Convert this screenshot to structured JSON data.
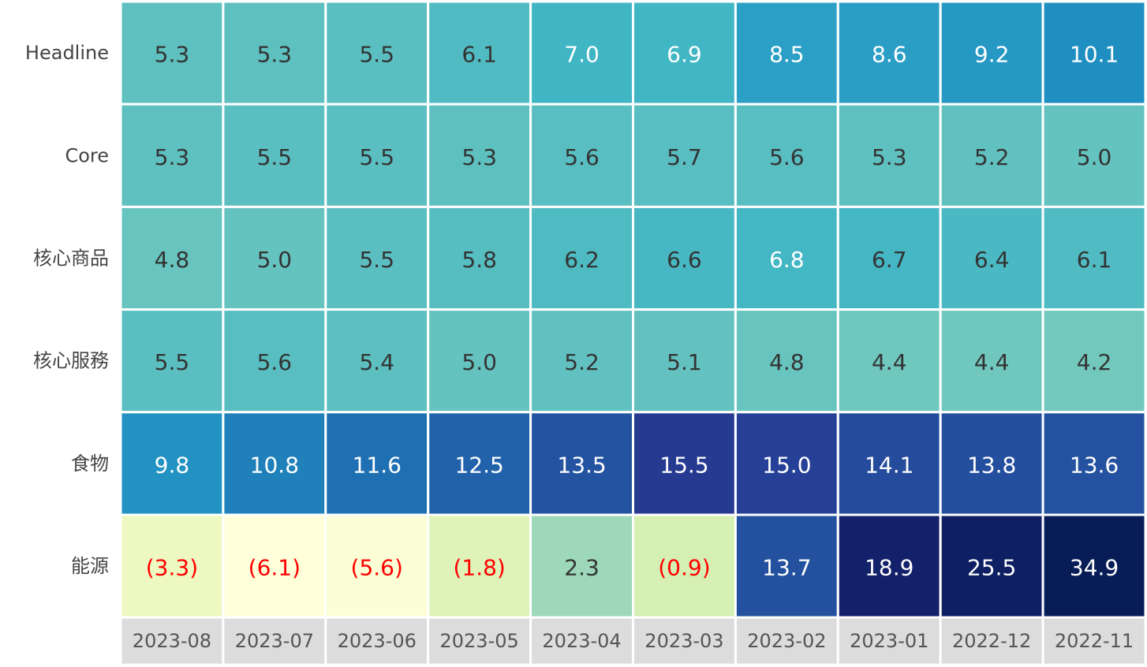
{
  "chart_data": {
    "type": "heatmap",
    "rows": [
      "Headline",
      "Core",
      "核心商品",
      "核心服務",
      "食物",
      "能源"
    ],
    "columns": [
      "2023-08",
      "2023-07",
      "2023-06",
      "2023-05",
      "2023-04",
      "2023-03",
      "2023-02",
      "2023-01",
      "2022-12",
      "2022-11"
    ],
    "values": [
      [
        5.3,
        5.3,
        5.5,
        6.1,
        7.0,
        6.9,
        8.5,
        8.6,
        9.2,
        10.1
      ],
      [
        5.3,
        5.5,
        5.5,
        5.3,
        5.6,
        5.7,
        5.6,
        5.3,
        5.2,
        5.0
      ],
      [
        4.8,
        5.0,
        5.5,
        5.8,
        6.2,
        6.6,
        6.8,
        6.7,
        6.4,
        6.1
      ],
      [
        5.5,
        5.6,
        5.4,
        5.0,
        5.2,
        5.1,
        4.8,
        4.4,
        4.4,
        4.2
      ],
      [
        9.8,
        10.8,
        11.6,
        12.5,
        13.5,
        15.5,
        15.0,
        14.1,
        13.8,
        13.6
      ],
      [
        -3.3,
        -6.1,
        -5.6,
        -1.8,
        2.3,
        -0.9,
        13.7,
        18.9,
        25.5,
        34.9
      ]
    ],
    "value_format": "negatives shown in parentheses",
    "colormap": "YlGnBu",
    "negative_color": "#ff0000",
    "column_label_background": "#dcdcdc",
    "colormap_stops": [
      {
        "value": -6.1,
        "color": "#ffffd9"
      },
      {
        "value": -3.3,
        "color": "#eef8c1"
      },
      {
        "value": -0.9,
        "color": "#d6efb3"
      },
      {
        "value": 2.3,
        "color": "#9cd8b9"
      },
      {
        "value": 4.2,
        "color": "#73c8bd"
      },
      {
        "value": 5.3,
        "color": "#5fc0c0"
      },
      {
        "value": 6.9,
        "color": "#41b6c4"
      },
      {
        "value": 8.5,
        "color": "#2c9fc6"
      },
      {
        "value": 10.1,
        "color": "#1f8fc1"
      },
      {
        "value": 11.6,
        "color": "#1f6fb3"
      },
      {
        "value": 13.6,
        "color": "#2452a0"
      },
      {
        "value": 15.5,
        "color": "#263a92"
      },
      {
        "value": 18.9,
        "color": "#13206a"
      },
      {
        "value": 34.9,
        "color": "#081d58"
      }
    ]
  }
}
